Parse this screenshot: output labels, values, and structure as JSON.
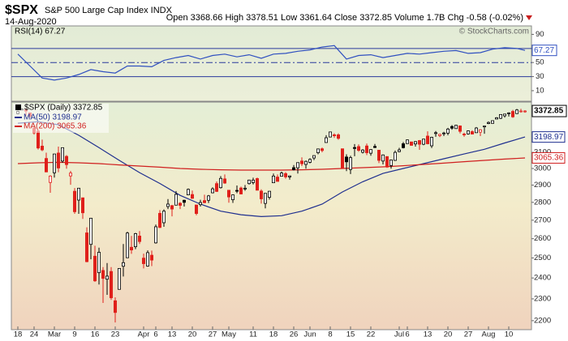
{
  "chart_data": {
    "type": "candlestick",
    "title": "$SPX",
    "subtitle": "S&P 500 Large Cap Index INDX",
    "date": "14-Aug-2020",
    "quote": "Open 3368.66 High 3378.51 Low 3361.64 Close 3372.85 Volume 1.7B Chg -0.58 (-0.02%)",
    "copyright": "© StockCharts.com",
    "log_y": true,
    "ylim": [
      2160,
      3435
    ],
    "yticks": [
      2200,
      2300,
      2400,
      2500,
      2600,
      2700,
      2800,
      2900,
      3000,
      3100
    ],
    "xticks": [
      {
        "value": 0,
        "label": "18"
      },
      {
        "value": 4,
        "label": "24"
      },
      {
        "value": 9,
        "label": "Mar"
      },
      {
        "value": 14,
        "label": "9"
      },
      {
        "value": 19,
        "label": "16"
      },
      {
        "value": 24,
        "label": "23"
      },
      {
        "value": 31,
        "label": "Apr"
      },
      {
        "value": 34,
        "label": "6"
      },
      {
        "value": 38,
        "label": "13"
      },
      {
        "value": 43,
        "label": "20"
      },
      {
        "value": 48,
        "label": "27"
      },
      {
        "value": 52,
        "label": "May"
      },
      {
        "value": 58,
        "label": "11"
      },
      {
        "value": 63,
        "label": "18"
      },
      {
        "value": 68,
        "label": "26"
      },
      {
        "value": 72,
        "label": "Jun"
      },
      {
        "value": 77,
        "label": "8"
      },
      {
        "value": 82,
        "label": "15"
      },
      {
        "value": 87,
        "label": "22"
      },
      {
        "value": 94,
        "label": "Jul"
      },
      {
        "value": 96,
        "label": "6"
      },
      {
        "value": 101,
        "label": "13"
      },
      {
        "value": 106,
        "label": "20"
      },
      {
        "value": 111,
        "label": "27"
      },
      {
        "value": 116,
        "label": "Aug"
      },
      {
        "value": 121,
        "label": "10"
      }
    ],
    "up_color": "#000000",
    "down_color": "#e0201b",
    "legend_label": "$SPX (Daily) 3372.85",
    "last_label": "3372.85",
    "open": [
      3355,
      3380,
      3380,
      3360,
      3257,
      3238,
      3140,
      3062,
      2916,
      2974,
      3096,
      3046,
      3075,
      2955,
      2864,
      2813,
      2826,
      2631,
      2570,
      2509,
      2426,
      2437,
      2394,
      2432,
      2291,
      2345,
      2458,
      2501,
      2555,
      2558,
      2614,
      2499,
      2459,
      2514,
      2578,
      2738,
      2686,
      2776,
      2782,
      2784,
      2795,
      2812,
      2843,
      2845,
      2785,
      2787,
      2810,
      2812,
      2855,
      2909,
      2885,
      2937,
      2870,
      2815,
      2869,
      2883,
      2879,
      2909,
      2915,
      2939,
      2865,
      2794,
      2829,
      2914,
      2948,
      2953,
      2969,
      2949,
      3005,
      3004,
      3046,
      3025,
      3038,
      3065,
      3098,
      3123,
      3163,
      3199,
      3213,
      3213,
      3123,
      3071,
      2994,
      3131,
      3137,
      3101,
      3141,
      3095,
      3138,
      3114,
      3046,
      3074,
      3018,
      3050,
      3105,
      3155,
      3156,
      3167,
      3154,
      3176,
      3152,
      3205,
      3142,
      3225,
      3208,
      3224,
      3224,
      3268,
      3254,
      3272,
      3218,
      3219,
      3234,
      3227,
      3231,
      3270,
      3288,
      3289,
      3318,
      3323,
      3340,
      3356,
      3370,
      3355,
      3372,
      3368.66
    ],
    "high": [
      3375,
      3393,
      3390,
      3360,
      3259,
      3246,
      3182,
      3098,
      2959,
      3090,
      3137,
      3130,
      3083,
      2985,
      2883,
      2883,
      2826,
      2661,
      2711,
      2563,
      2553,
      2454,
      2474,
      2454,
      2307,
      2449,
      2572,
      2637,
      2615,
      2631,
      2641,
      2522,
      2539,
      2538,
      2676,
      2756,
      2760,
      2819,
      2782,
      2865,
      2801,
      2815,
      2880,
      2868,
      2785,
      2815,
      2844,
      2842,
      2887,
      2922,
      2954,
      2964,
      2870,
      2844,
      2898,
      2891,
      2901,
      2932,
      2944,
      2945,
      2875,
      2853,
      2865,
      2969,
      2964,
      2981,
      2978,
      2957,
      3021,
      3036,
      3069,
      3049,
      3063,
      3081,
      3124,
      3131,
      3211,
      3233,
      3223,
      3223,
      3123,
      3088,
      3079,
      3153,
      3151,
      3121,
      3156,
      3120,
      3154,
      3115,
      3087,
      3074,
      3054,
      3112,
      3129,
      3166,
      3183,
      3168,
      3172,
      3179,
      3187,
      3236,
      3200,
      3238,
      3220,
      3233,
      3259,
      3277,
      3279,
      3275,
      3227,
      3241,
      3243,
      3264,
      3250,
      3272,
      3302,
      3307,
      3331,
      3351,
      3352,
      3364,
      3381,
      3387,
      3388,
      3378.51
    ],
    "low": [
      3350,
      3378,
      3341,
      3328,
      3215,
      3118,
      3108,
      2977,
      2855,
      2945,
      2977,
      3035,
      2999,
      2902,
      2735,
      2735,
      2707,
      2478,
      2493,
      2381,
      2368,
      2281,
      2319,
      2295,
      2192,
      2345,
      2407,
      2500,
      2521,
      2545,
      2572,
      2447,
      2456,
      2459,
      2574,
      2657,
      2664,
      2762,
      2721,
      2784,
      2762,
      2776,
      2842,
      2820,
      2727,
      2776,
      2795,
      2796,
      2852,
      2860,
      2880,
      2908,
      2798,
      2797,
      2853,
      2848,
      2867,
      2903,
      2904,
      2869,
      2793,
      2766,
      2816,
      2914,
      2922,
      2953,
      2938,
      2933,
      2988,
      2969,
      3015,
      2999,
      3032,
      3052,
      3088,
      3101,
      3163,
      3196,
      3193,
      3181,
      2999,
      2984,
      2966,
      3076,
      3104,
      3093,
      3083,
      3079,
      3128,
      3033,
      3025,
      3004,
      2999,
      3047,
      3101,
      3125,
      3155,
      3142,
      3137,
      3116,
      3146,
      3151,
      3128,
      3200,
      3198,
      3205,
      3210,
      3247,
      3254,
      3222,
      3200,
      3214,
      3216,
      3227,
      3205,
      3220,
      3284,
      3288,
      3317,
      3318,
      3328,
      3335,
      3326,
      3355,
      3363,
      3361.64
    ],
    "close": [
      3370,
      3386,
      3373,
      3338,
      3226,
      3128,
      3116,
      2979,
      2954,
      3090,
      3003,
      3130,
      3024,
      2972,
      2747,
      2882,
      2741,
      2481,
      2711,
      2386,
      2529,
      2398,
      2409,
      2305,
      2237,
      2447,
      2476,
      2630,
      2541,
      2627,
      2585,
      2471,
      2527,
      2489,
      2664,
      2660,
      2750,
      2790,
      2762,
      2846,
      2783,
      2800,
      2875,
      2823,
      2737,
      2799,
      2798,
      2837,
      2878,
      2863,
      2940,
      2912,
      2831,
      2843,
      2868,
      2848,
      2882,
      2930,
      2930,
      2870,
      2820,
      2852,
      2864,
      2954,
      2922,
      2972,
      2949,
      2955,
      2992,
      3036,
      3029,
      3044,
      3056,
      3080,
      3122,
      3112,
      3194,
      3232,
      3207,
      3190,
      3002,
      3041,
      3067,
      3125,
      3113,
      3115,
      3098,
      3118,
      3131,
      3050,
      3084,
      3009,
      3053,
      3100,
      3116,
      3130,
      3180,
      3145,
      3169,
      3152,
      3185,
      3155,
      3197,
      3227,
      3216,
      3225,
      3251,
      3257,
      3276,
      3236,
      3216,
      3239,
      3218,
      3258,
      3246,
      3271,
      3295,
      3307,
      3327,
      3349,
      3352,
      3360,
      3333,
      3380,
      3373,
      3372.85
    ],
    "overlays": [
      {
        "legend_label": "MA(50) 3198.97",
        "last_label": "3198.97",
        "color": "#1f2f8f",
        "x": [
          0,
          5,
          10,
          15,
          20,
          25,
          30,
          35,
          40,
          45,
          50,
          55,
          60,
          65,
          70,
          75,
          80,
          85,
          90,
          95,
          100,
          105,
          110,
          115,
          120,
          125
        ],
        "values": [
          3290,
          3300,
          3280,
          3210,
          3130,
          3050,
          2975,
          2910,
          2840,
          2790,
          2750,
          2730,
          2720,
          2725,
          2750,
          2790,
          2860,
          2920,
          2970,
          3000,
          3030,
          3060,
          3090,
          3120,
          3160,
          3198.97
        ]
      },
      {
        "legend_label": "MA(200) 3065.36",
        "last_label": "3065.36",
        "color": "#d01f1f",
        "x": [
          0,
          5,
          10,
          15,
          20,
          25,
          30,
          35,
          40,
          45,
          50,
          55,
          60,
          65,
          70,
          75,
          80,
          85,
          90,
          95,
          100,
          105,
          110,
          115,
          120,
          125
        ],
        "values": [
          3030,
          3035,
          3038,
          3035,
          3030,
          3022,
          3015,
          3008,
          3000,
          2995,
          2992,
          2990,
          2990,
          2990,
          2992,
          2995,
          3000,
          3005,
          3010,
          3017,
          3025,
          3033,
          3042,
          3050,
          3058,
          3065.36
        ]
      }
    ],
    "rsi": {
      "type": "line",
      "label": "RSI(14) 67.27",
      "last_label": "67.27",
      "color": "#3050c0",
      "ylim": [
        -5,
        102
      ],
      "yticks": [
        10,
        30,
        50,
        70,
        90
      ],
      "levels": [
        30,
        50,
        70
      ],
      "x": [
        0,
        3,
        6,
        9,
        12,
        15,
        18,
        21,
        24,
        27,
        30,
        33,
        36,
        39,
        42,
        45,
        48,
        51,
        54,
        57,
        60,
        63,
        66,
        69,
        72,
        75,
        78,
        81,
        84,
        87,
        90,
        93,
        96,
        99,
        102,
        105,
        108,
        111,
        114,
        117,
        120,
        123,
        125
      ],
      "values": [
        62,
        45,
        28,
        25,
        28,
        33,
        40,
        37,
        35,
        45,
        45,
        44,
        53,
        57,
        60,
        55,
        60,
        62,
        58,
        61,
        56,
        62,
        63,
        66,
        68,
        72,
        74,
        55,
        60,
        61,
        57,
        60,
        63,
        62,
        64,
        66,
        67,
        63,
        64,
        69,
        71,
        70,
        67.27
      ]
    }
  }
}
